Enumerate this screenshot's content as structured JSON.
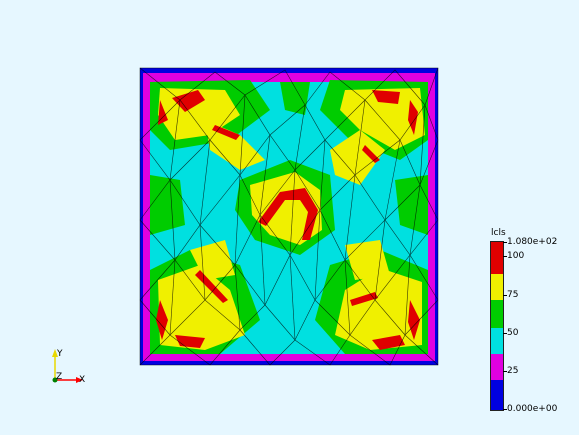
{
  "colormap": {
    "title": "lcls",
    "max_label": "1.080e+02",
    "min_label": "0.000e+00",
    "ticks": [
      "100",
      "75",
      "50",
      "25"
    ],
    "band_colors": [
      "#0000e0",
      "#e000e0",
      "#00e0e0",
      "#00cc00",
      "#f0f000",
      "#e00000"
    ]
  },
  "axes": {
    "y_label": "Y",
    "z_label": "Z",
    "x_label": "X",
    "y_color": "#e8d800",
    "x_color": "#ff0000",
    "origin_color": "#008000"
  },
  "mesh": {
    "edge_color": "#000000",
    "background_color": "#e6f7ff"
  }
}
